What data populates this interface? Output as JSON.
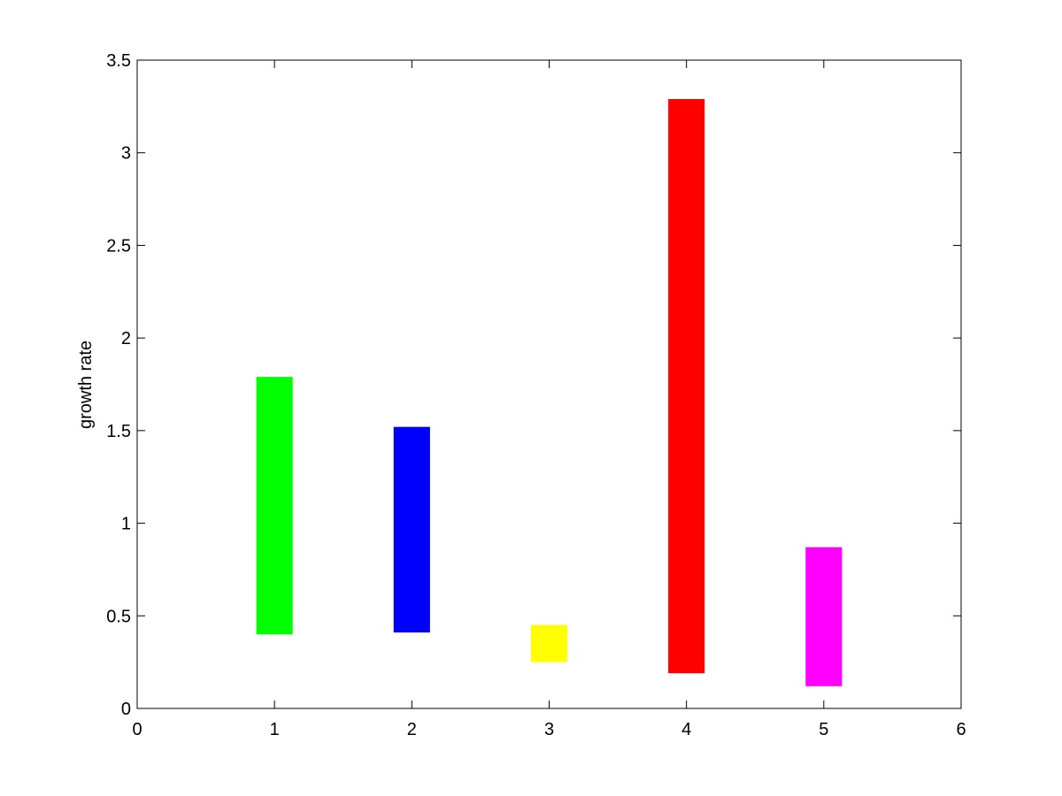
{
  "chart_data": {
    "type": "bar",
    "subtype": "floating-range",
    "title": "",
    "xlabel": "",
    "ylabel": "growth rate",
    "xlim": [
      0,
      6
    ],
    "ylim": [
      0,
      3.5
    ],
    "grid": false,
    "xticks": [
      "0",
      "1",
      "2",
      "3",
      "4",
      "5",
      "6"
    ],
    "yticks": [
      "0",
      "0.5",
      "1",
      "1.5",
      "2",
      "2.5",
      "3",
      "3.5"
    ],
    "bars": [
      {
        "x": 1,
        "low": 0.4,
        "high": 1.79,
        "color": "#00ff00"
      },
      {
        "x": 2,
        "low": 0.41,
        "high": 1.52,
        "color": "#0000ff"
      },
      {
        "x": 3,
        "low": 0.25,
        "high": 0.45,
        "color": "#ffff00"
      },
      {
        "x": 4,
        "low": 0.19,
        "high": 3.29,
        "color": "#ff0000"
      },
      {
        "x": 5,
        "low": 0.12,
        "high": 0.87,
        "color": "#ff00ff"
      }
    ]
  }
}
